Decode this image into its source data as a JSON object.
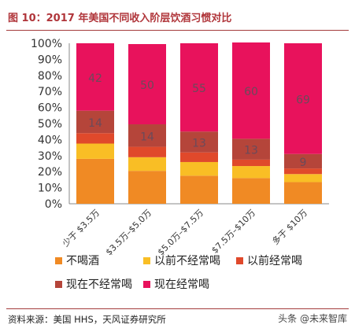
{
  "title": "图 10：2017 年美国不同收入阶层饮酒习惯对比",
  "source": "资料来源：美国 HHS，天风证券研究所",
  "watermark": "头条 @未来智库",
  "colors": {
    "title": "#b0353a",
    "series": [
      "#f08a24",
      "#f9be25",
      "#e0492b",
      "#b5453a",
      "#e8125c"
    ]
  },
  "chart_data": {
    "type": "bar",
    "stacked": true,
    "categories": [
      "少于 $3.5万",
      "$3.5万–$5.0万",
      "$5.0万–$7.5万",
      "$7.5万–$10万",
      "多于 $10万"
    ],
    "ylim": [
      0,
      100
    ],
    "yticks": [
      "0%",
      "10%",
      "20%",
      "30%",
      "40%",
      "50%",
      "60%",
      "70%",
      "80%",
      "90%",
      "100%"
    ],
    "series": [
      {
        "name": "不喝酒",
        "values": [
          28,
          20.5,
          17.5,
          16,
          13.5
        ]
      },
      {
        "name": "以前不经常喝",
        "values": [
          9.5,
          8.5,
          8.5,
          7.5,
          5
        ]
      },
      {
        "name": "以前经常喝",
        "values": [
          6.5,
          6.5,
          6,
          4,
          3.5
        ]
      },
      {
        "name": "现在不经常喝",
        "values": [
          14,
          14,
          13,
          13,
          9
        ]
      },
      {
        "name": "现在经常喝",
        "values": [
          42,
          50,
          55,
          60,
          69
        ]
      }
    ],
    "data_labels": {
      "series": [
        "现在不经常喝",
        "现在经常喝"
      ]
    },
    "legend_position": "bottom",
    "grid": false
  }
}
